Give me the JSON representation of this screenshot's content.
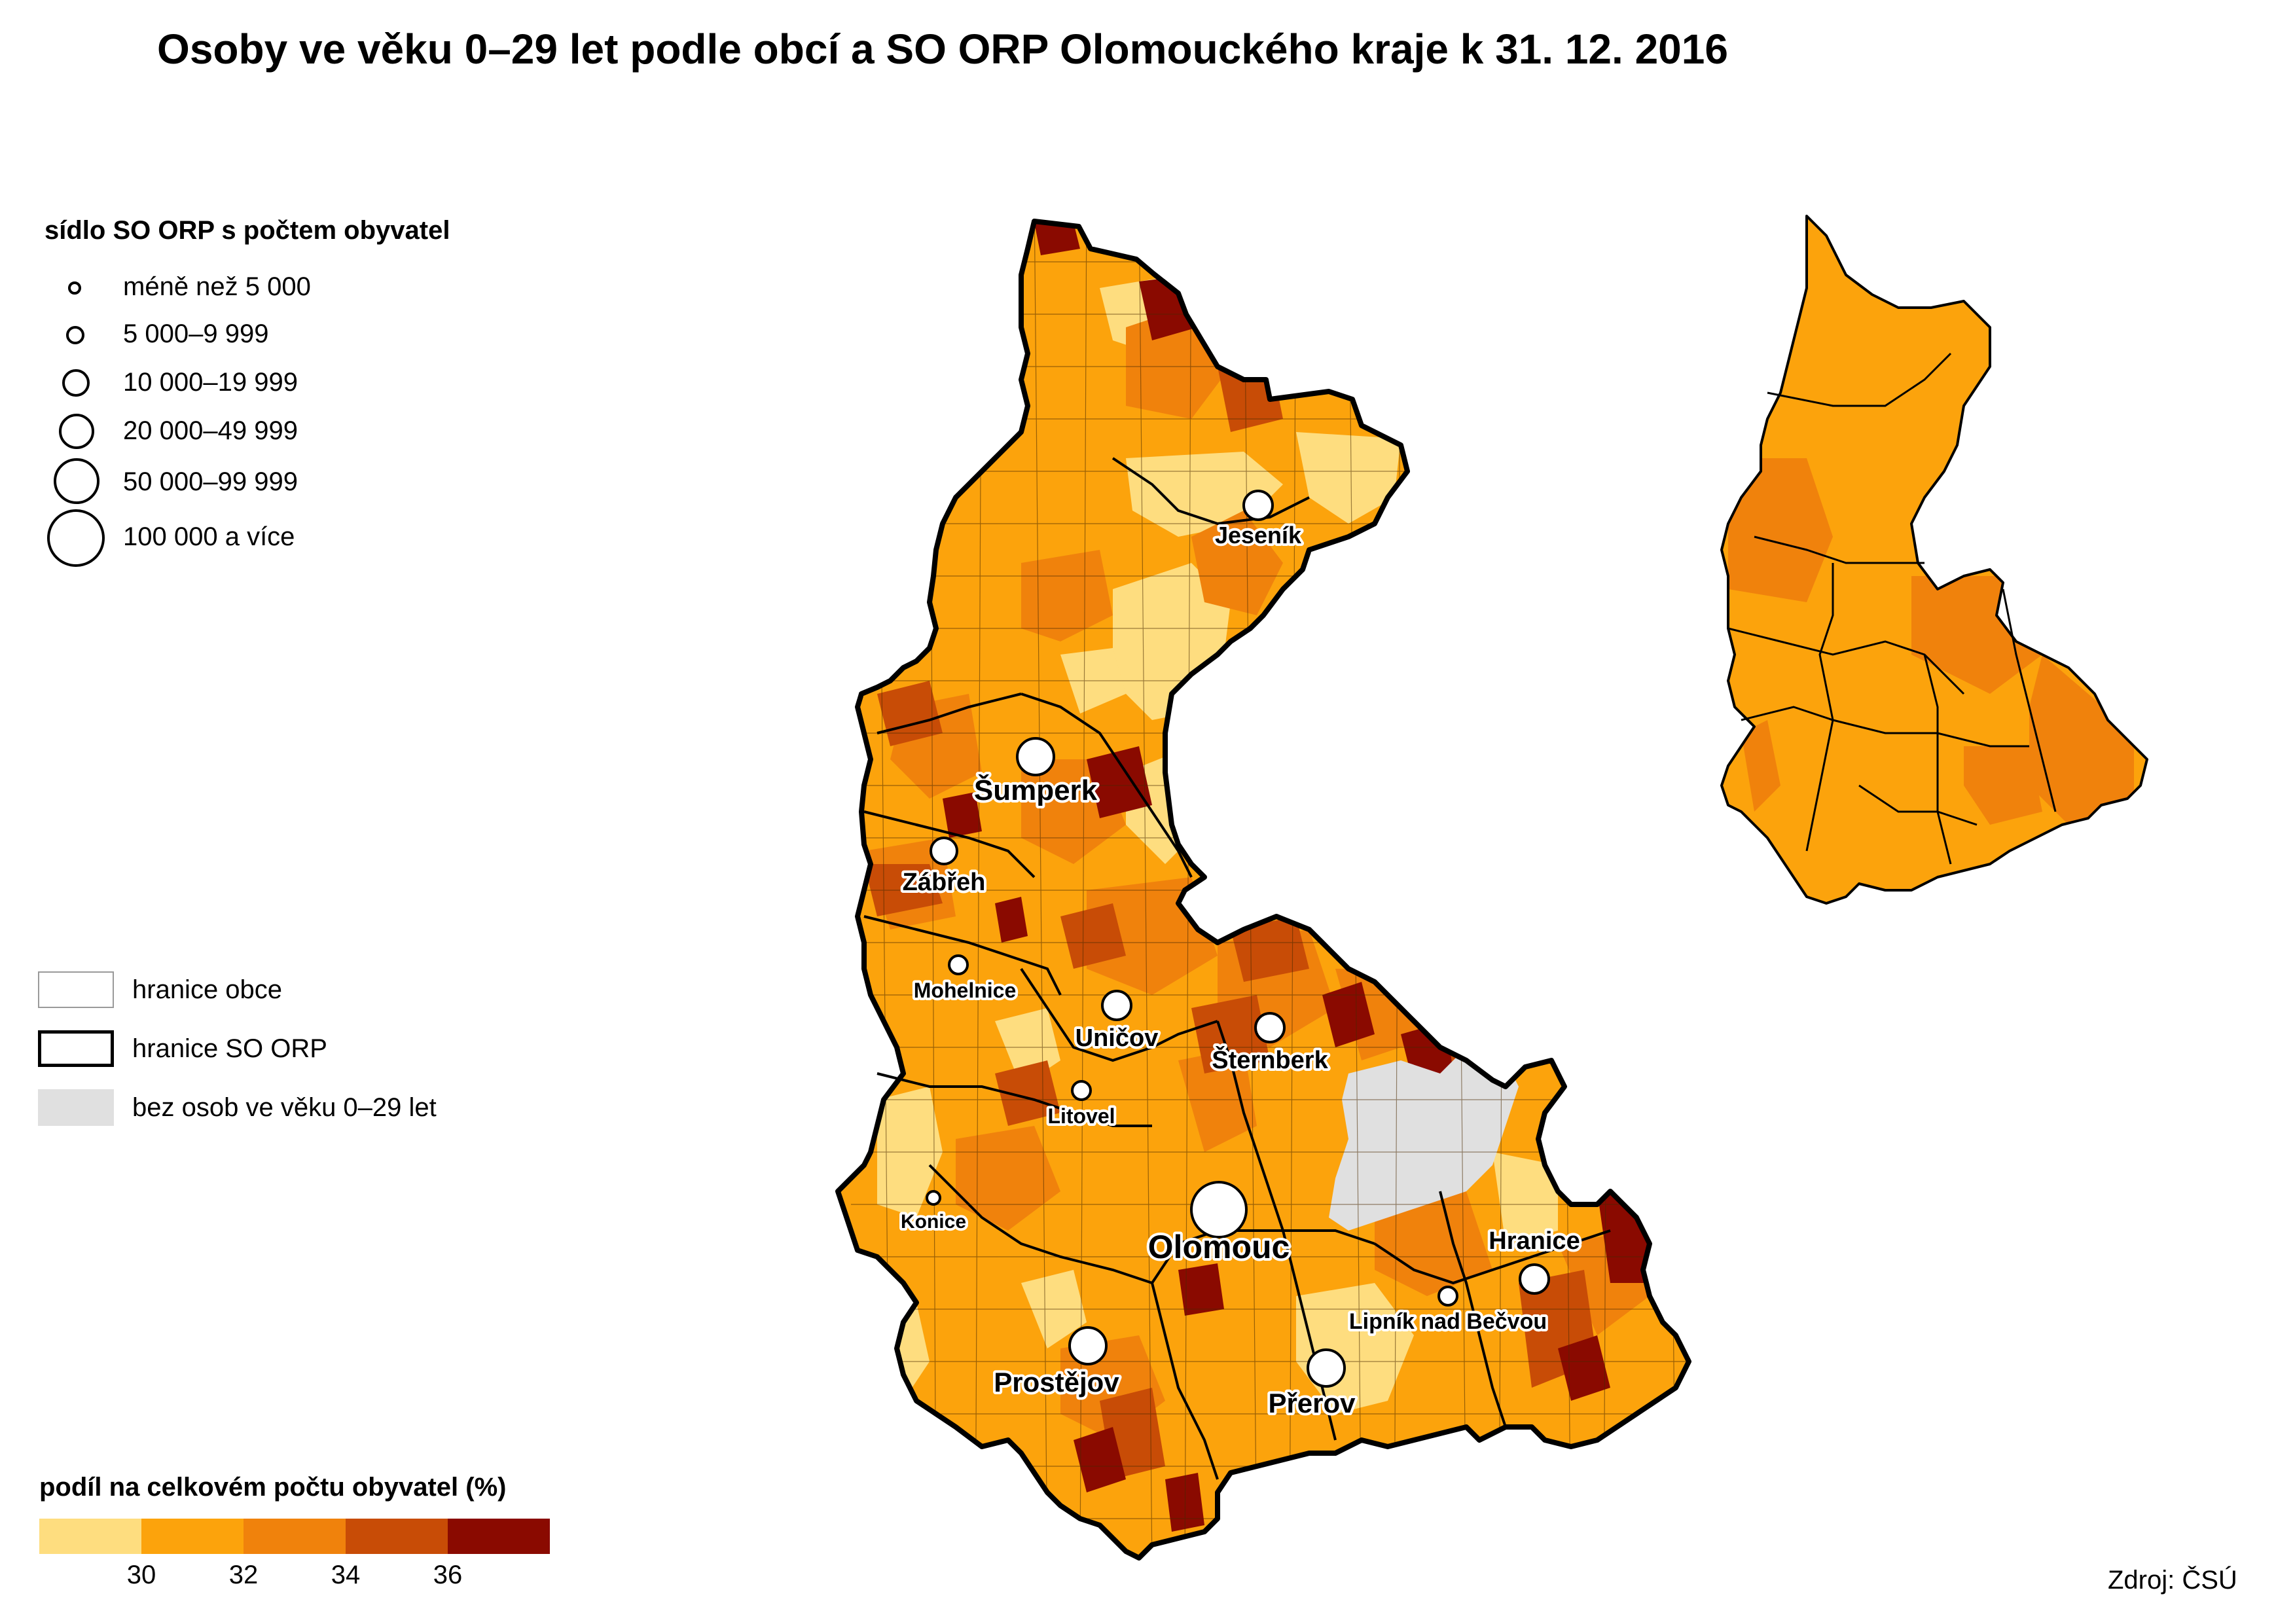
{
  "title": "Osoby ve věku 0–29 let podle obcí a SO ORP Olomouckého kraje k 31. 12. 2016",
  "size_legend": {
    "heading": "sídlo SO ORP s počtem obyvatel",
    "items": [
      {
        "label": "méně než 5 000"
      },
      {
        "label": "5 000–9 999"
      },
      {
        "label": "10 000–19 999"
      },
      {
        "label": "20 000–49 999"
      },
      {
        "label": "50 000–99 999"
      },
      {
        "label": "100 000 a více"
      }
    ]
  },
  "boundary_legend": {
    "items": [
      {
        "label": "hranice obce",
        "type": "municipality-boundary"
      },
      {
        "label": "hranice SO ORP",
        "type": "orp-boundary"
      },
      {
        "label": "bez osob ve věku 0–29 let",
        "type": "no-data",
        "color": "#e0e0e0"
      }
    ]
  },
  "color_legend": {
    "heading": "podíl na celkovém počtu obyvatel (%)",
    "classes": [
      "#fedd7f",
      "#fca30c",
      "#f0820c",
      "#c84c06",
      "#8a0a00"
    ],
    "ticks": [
      "30",
      "32",
      "34",
      "36"
    ]
  },
  "cities": [
    {
      "name": "Jeseník",
      "size_class": 3
    },
    {
      "name": "Šumperk",
      "size_class": 4
    },
    {
      "name": "Zábřeh",
      "size_class": 3
    },
    {
      "name": "Mohelnice",
      "size_class": 2
    },
    {
      "name": "Uničov",
      "size_class": 3
    },
    {
      "name": "Šternberk",
      "size_class": 3
    },
    {
      "name": "Litovel",
      "size_class": 2
    },
    {
      "name": "Konice",
      "size_class": 1
    },
    {
      "name": "Olomouc",
      "size_class": 6
    },
    {
      "name": "Hranice",
      "size_class": 3
    },
    {
      "name": "Lipník nad Bečvou",
      "size_class": 2
    },
    {
      "name": "Prostějov",
      "size_class": 4
    },
    {
      "name": "Přerov",
      "size_class": 4
    }
  ],
  "source": "Zdroj: ČSÚ"
}
